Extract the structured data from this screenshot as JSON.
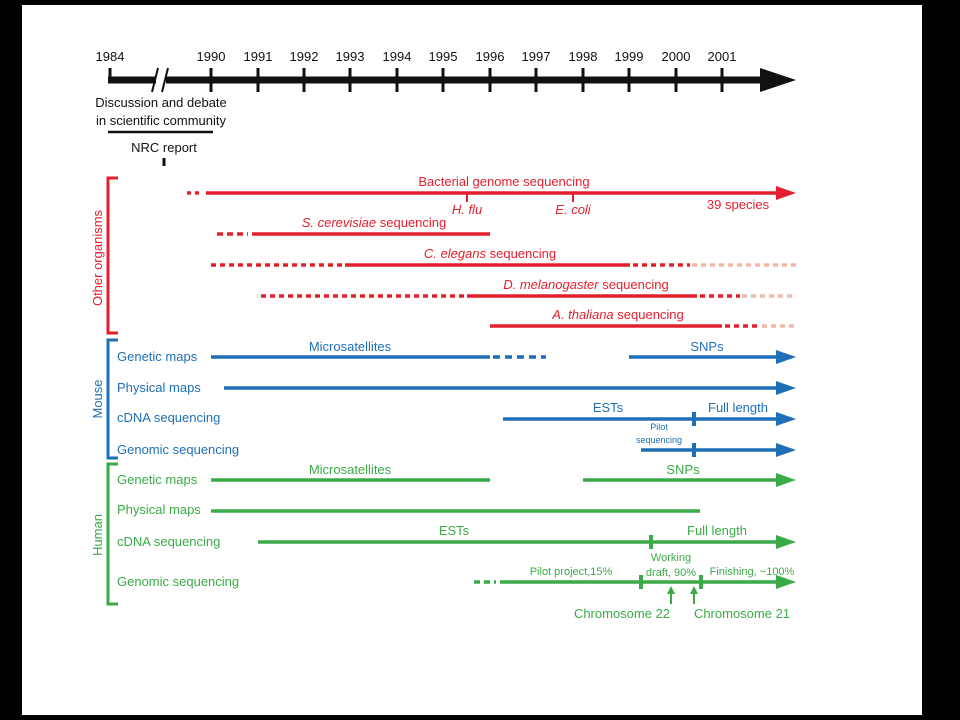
{
  "colors": {
    "black": "#111111",
    "red": "#e4202e",
    "blue": "#1f6fb6",
    "green": "#3aab48",
    "fade": "#f2b9a6"
  },
  "timeline": {
    "years": [
      "1984",
      "1990",
      "1991",
      "1992",
      "1993",
      "1994",
      "1995",
      "1996",
      "1997",
      "1998",
      "1999",
      "2000",
      "2001"
    ],
    "discussion_line1": "Discussion and debate",
    "discussion_line2": "in scientific community",
    "nrc_report": "NRC report"
  },
  "groups": {
    "other": "Other organisms",
    "mouse": "Mouse",
    "human": "Human"
  },
  "other": {
    "bacterial": "Bacterial genome sequencing",
    "hflu": "H. flu",
    "ecoli": "E. coli",
    "species": "39 species",
    "cerevisiae_italic": "S. cerevisiae",
    "cerevisiae_rest": " sequencing",
    "elegans_italic": "C. elegans",
    "elegans_rest": " sequencing",
    "melanogaster_italic": "D. melanogaster",
    "melanogaster_rest": " sequencing",
    "thaliana_italic": "A. thaliana",
    "thaliana_rest": " sequencing"
  },
  "mouse": {
    "genetic_maps": "Genetic maps",
    "physical_maps": "Physical maps",
    "cdna": "cDNA sequencing",
    "genomic": "Genomic sequencing",
    "microsatellites": "Microsatellites",
    "snps": "SNPs",
    "ests": "ESTs",
    "full_length": "Full length",
    "pilot_line1": "Pilot",
    "pilot_line2": "sequencing"
  },
  "human": {
    "genetic_maps": "Genetic maps",
    "physical_maps": "Physical maps",
    "cdna": "cDNA sequencing",
    "genomic": "Genomic sequencing",
    "microsatellites": "Microsatellites",
    "snps": "SNPs",
    "ests": "ESTs",
    "full_length": "Full length",
    "pilot_project": "Pilot project,15%",
    "working_line1": "Working",
    "working_line2": "draft, 90%",
    "finishing": "Finishing, ~100%",
    "chr22": "Chromosome 22",
    "chr21": "Chromosome 21"
  }
}
